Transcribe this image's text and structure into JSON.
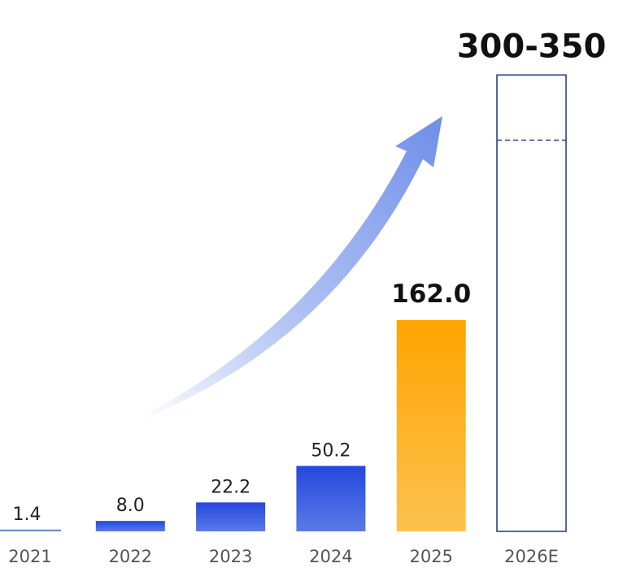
{
  "chart_data": {
    "type": "bar",
    "title": "",
    "xlabel": "",
    "ylabel": "",
    "categories": [
      "2021",
      "2022",
      "2023",
      "2024",
      "2025",
      "2026E"
    ],
    "values": [
      1.4,
      8.0,
      22.2,
      50.2,
      162.0,
      null
    ],
    "value_labels": [
      "1.4",
      "8.0",
      "22.2",
      "50.2",
      "162.0",
      "300-350"
    ],
    "estimate_range": {
      "category": "2026E",
      "low": 300,
      "high": 350,
      "label": "300-350"
    },
    "ylim": [
      0,
      350
    ],
    "grid": false,
    "legend": "none",
    "annotations": [
      "upward growth arrow"
    ],
    "colors": {
      "historic": "#2a4fdc",
      "highlight": "#ffa500",
      "estimate_outline": "#2f3f85"
    }
  }
}
